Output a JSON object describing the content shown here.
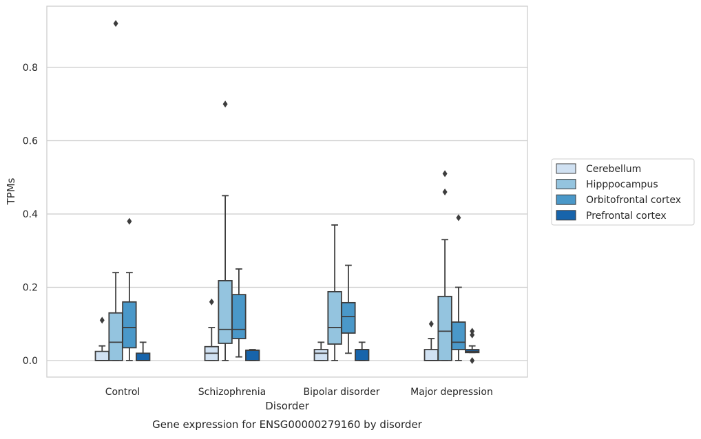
{
  "caption": "Gene expression for ENSG00000279160 by disorder",
  "colors": {
    "Cerebellum": "#d0e1f2",
    "Hipppocampus": "#94c4df",
    "Orbitofrontal cortex": "#4a98c9",
    "Prefrontal cortex": "#1764ab",
    "grid": "#cccccc",
    "line": "#3d3d3d"
  },
  "chart_data": {
    "type": "box",
    "title": "",
    "xlabel": "Disorder",
    "ylabel": "TPMs",
    "categories": [
      "Control",
      "Schizophrenia",
      "Bipolar disorder",
      "Major depression"
    ],
    "ylim": [
      -0.045,
      0.97
    ],
    "yticks": [
      0.0,
      0.2,
      0.4,
      0.6,
      0.8
    ],
    "ytick_labels": [
      "0.0",
      "0.2",
      "0.4",
      "0.6",
      "0.8"
    ],
    "grid": true,
    "legend_position": "right",
    "series": [
      {
        "name": "Cerebellum",
        "boxes": [
          {
            "min": 0.0,
            "q1": 0.0,
            "median": 0.0,
            "q3": 0.025,
            "max": 0.04,
            "outliers": [
              0.11
            ]
          },
          {
            "min": 0.0,
            "q1": 0.0,
            "median": 0.02,
            "q3": 0.038,
            "max": 0.09,
            "outliers": [
              0.16
            ]
          },
          {
            "min": 0.0,
            "q1": 0.0,
            "median": 0.02,
            "q3": 0.03,
            "max": 0.05,
            "outliers": []
          },
          {
            "min": 0.0,
            "q1": 0.0,
            "median": 0.0,
            "q3": 0.03,
            "max": 0.06,
            "outliers": [
              0.1
            ]
          }
        ]
      },
      {
        "name": "Hipppocampus",
        "boxes": [
          {
            "min": 0.0,
            "q1": 0.0,
            "median": 0.05,
            "q3": 0.13,
            "max": 0.24,
            "outliers": [
              0.92
            ]
          },
          {
            "min": 0.0,
            "q1": 0.047,
            "median": 0.085,
            "q3": 0.218,
            "max": 0.45,
            "outliers": [
              0.7
            ]
          },
          {
            "min": 0.0,
            "q1": 0.045,
            "median": 0.09,
            "q3": 0.188,
            "max": 0.37,
            "outliers": []
          },
          {
            "min": 0.0,
            "q1": 0.0,
            "median": 0.08,
            "q3": 0.175,
            "max": 0.33,
            "outliers": [
              0.46,
              0.51
            ]
          }
        ]
      },
      {
        "name": "Orbitofrontal cortex",
        "boxes": [
          {
            "min": 0.0,
            "q1": 0.035,
            "median": 0.09,
            "q3": 0.16,
            "max": 0.24,
            "outliers": [
              0.38
            ]
          },
          {
            "min": 0.01,
            "q1": 0.06,
            "median": 0.085,
            "q3": 0.18,
            "max": 0.25,
            "outliers": []
          },
          {
            "min": 0.02,
            "q1": 0.075,
            "median": 0.12,
            "q3": 0.158,
            "max": 0.26,
            "outliers": []
          },
          {
            "min": 0.0,
            "q1": 0.03,
            "median": 0.05,
            "q3": 0.105,
            "max": 0.2,
            "outliers": [
              0.39
            ]
          }
        ]
      },
      {
        "name": "Prefrontal cortex",
        "boxes": [
          {
            "min": 0.0,
            "q1": 0.0,
            "median": 0.0,
            "q3": 0.02,
            "max": 0.05,
            "outliers": []
          },
          {
            "min": 0.0,
            "q1": 0.0,
            "median": 0.028,
            "q3": 0.028,
            "max": 0.03,
            "outliers": []
          },
          {
            "min": 0.0,
            "q1": 0.0,
            "median": 0.03,
            "q3": 0.03,
            "max": 0.05,
            "outliers": []
          },
          {
            "min": 0.022,
            "q1": 0.022,
            "median": 0.025,
            "q3": 0.03,
            "max": 0.04,
            "outliers": [
              0.0,
              0.07,
              0.08
            ]
          }
        ]
      }
    ]
  }
}
